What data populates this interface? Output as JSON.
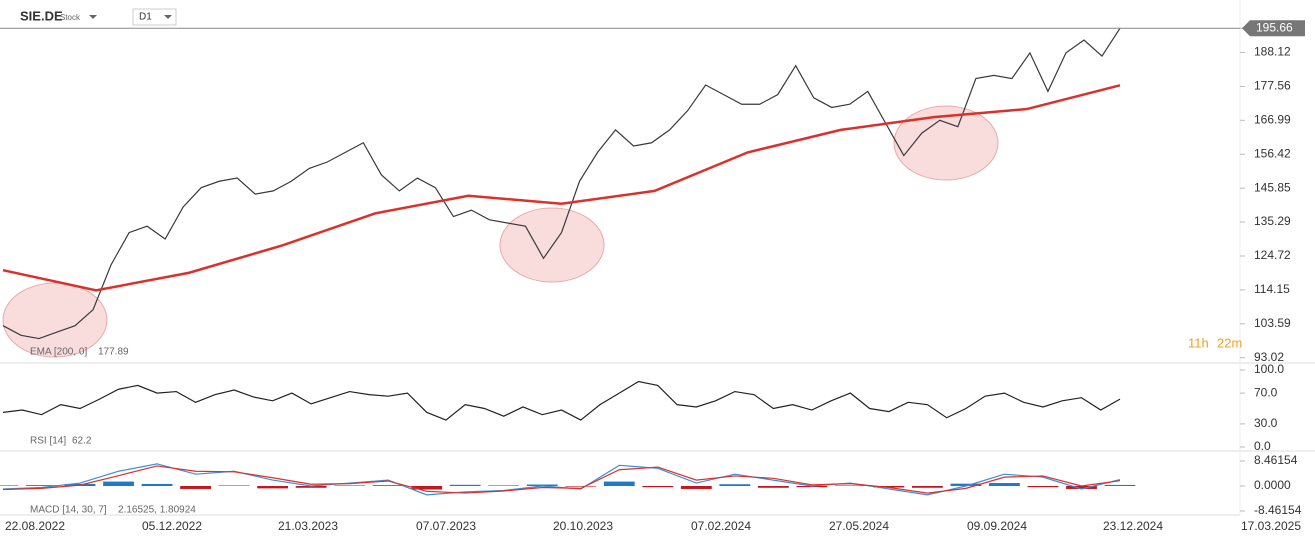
{
  "header": {
    "symbol": "SIE.DE",
    "kind": "Stock",
    "interval": "D1",
    "countdown_h": "11h",
    "countdown_m": "22m"
  },
  "x_labels": [
    "22.08.2022",
    "05.12.2022",
    "21.03.2023",
    "07.07.2023",
    "20.10.2023",
    "07.02.2024",
    "27.05.2024",
    "09.09.2024",
    "23.12.2024",
    "17.03.2025"
  ],
  "chart_data": [
    {
      "type": "line",
      "name": "price",
      "last_label": "195.66",
      "ylim": [
        92,
        197
      ],
      "yticks": [
        195.66,
        188.12,
        177.56,
        166.99,
        156.42,
        145.85,
        135.29,
        124.72,
        114.15,
        103.59,
        93.02
      ],
      "series": [
        {
          "name": "SIE.DE",
          "color": "#3a3a3a",
          "values": [
            103,
            100,
            99,
            101,
            103,
            108,
            122,
            132,
            134,
            130,
            140,
            146,
            148,
            149,
            144,
            145,
            148,
            152,
            154,
            157,
            160,
            150,
            145,
            149,
            146,
            137,
            139,
            136,
            135,
            134,
            124,
            132,
            148,
            157,
            164,
            159,
            160,
            164,
            170,
            178,
            175,
            172,
            172,
            175,
            184,
            174,
            171,
            172,
            176,
            166,
            156,
            163,
            167,
            165,
            180,
            181,
            180,
            188,
            176,
            188,
            192,
            187,
            195.66
          ]
        },
        {
          "name": "EMA [200, 0]",
          "legend_value": "177.89",
          "color": "#d9312b",
          "values": [
            120.3,
            114,
            119.5,
            128,
            138,
            143.5,
            141,
            145,
            157,
            164,
            168,
            170.5,
            177.89
          ]
        }
      ],
      "highlights": [
        {
          "cx": 55,
          "cy": 320
        },
        {
          "cx": 552,
          "cy": 245
        },
        {
          "cx": 946,
          "cy": 143
        }
      ]
    },
    {
      "type": "line",
      "name": "rsi",
      "legend": "RSI [14]",
      "legend_value": "62.2",
      "ylim": [
        0,
        100
      ],
      "yticks": [
        {
          "value": 100,
          "label": "100.0"
        },
        {
          "value": 70,
          "label": "70.0"
        },
        {
          "value": 30,
          "label": "30.0"
        },
        {
          "value": 0,
          "label": "0.0"
        }
      ],
      "series": [
        {
          "name": "RSI",
          "color": "#222222",
          "values": [
            45,
            48,
            42,
            55,
            50,
            62,
            75,
            80,
            70,
            72,
            58,
            68,
            74,
            65,
            60,
            70,
            56,
            64,
            72,
            68,
            66,
            70,
            45,
            35,
            55,
            50,
            40,
            52,
            42,
            48,
            35,
            55,
            70,
            85,
            80,
            55,
            52,
            60,
            72,
            68,
            50,
            55,
            48,
            60,
            70,
            50,
            46,
            58,
            55,
            38,
            50,
            66,
            70,
            58,
            52,
            60,
            64,
            48,
            62.2
          ]
        }
      ]
    },
    {
      "type": "macd",
      "name": "macd",
      "legend": "MACD [14, 30, 7]",
      "legend_value": "2.16525,  1.80924",
      "ylim": [
        -10.5,
        10.5
      ],
      "yticks": [
        8.46154,
        {
          "value": 0,
          "label": "0.0000"
        },
        -8.46154
      ],
      "series": [
        {
          "name": "MACD",
          "color": "#3b8fd9",
          "values": [
            -1,
            -0.5,
            1,
            5,
            7.5,
            4,
            5,
            2,
            0,
            1,
            2,
            -3,
            -2,
            -1.5,
            0,
            -1,
            7,
            6,
            1,
            4,
            2,
            0,
            1,
            -1,
            -3,
            0,
            4,
            3,
            -1,
            2.16525
          ]
        },
        {
          "name": "Signal",
          "color": "#d9312b",
          "values": [
            -1.2,
            -0.8,
            0.3,
            3.5,
            6.8,
            5,
            4.8,
            2.8,
            0.6,
            0.8,
            1.7,
            -1.8,
            -2.4,
            -1.7,
            -0.5,
            -0.8,
            5.5,
            6.4,
            2,
            3.4,
            2.6,
            0.4,
            0.8,
            -0.5,
            -2.4,
            -0.8,
            3,
            3.4,
            0,
            1.80924
          ]
        },
        {
          "name": "Histogram",
          "color": "#1f7ac4",
          "neg_color": "#c4161c",
          "values": [
            0.2,
            0.3,
            0.7,
            1.5,
            0.7,
            -1,
            0.2,
            -0.8,
            -0.6,
            0.2,
            0.3,
            -1.2,
            0.4,
            0.2,
            0.5,
            -0.2,
            1.5,
            -0.4,
            -1,
            0.6,
            -0.6,
            -0.4,
            0.2,
            -0.5,
            -0.6,
            0.8,
            1,
            -0.4,
            -1,
            0.36
          ]
        }
      ]
    }
  ]
}
